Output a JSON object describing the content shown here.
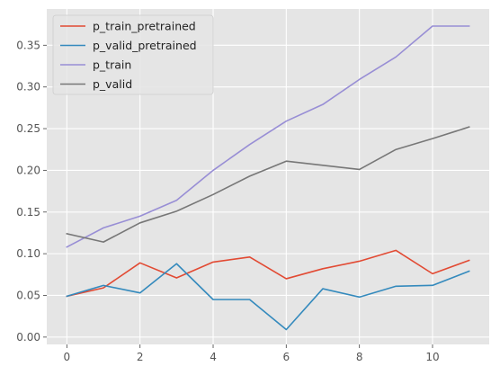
{
  "chart_data": {
    "type": "line",
    "title": "",
    "xlabel": "",
    "ylabel": "",
    "x": [
      0,
      1,
      2,
      3,
      4,
      5,
      6,
      7,
      8,
      9,
      10,
      11
    ],
    "xlim": [
      -0.55,
      11.55
    ],
    "ylim": [
      -0.0088,
      0.3935
    ],
    "xticks": [
      0,
      2,
      4,
      6,
      8,
      10
    ],
    "xtick_labels": [
      "0",
      "2",
      "4",
      "6",
      "8",
      "10"
    ],
    "yticks": [
      0.0,
      0.05,
      0.1,
      0.15,
      0.2,
      0.25,
      0.3,
      0.35
    ],
    "ytick_labels": [
      "0.00",
      "0.05",
      "0.10",
      "0.15",
      "0.20",
      "0.25",
      "0.30",
      "0.35"
    ],
    "grid": true,
    "legend_position": "upper-left",
    "series": [
      {
        "name": "p_train_pretrained",
        "color": "#E24A33",
        "values": [
          0.049,
          0.059,
          0.089,
          0.071,
          0.09,
          0.096,
          0.07,
          0.082,
          0.091,
          0.104,
          0.076,
          0.092
        ]
      },
      {
        "name": "p_valid_pretrained",
        "color": "#348ABD",
        "values": [
          0.049,
          0.062,
          0.053,
          0.088,
          0.045,
          0.045,
          0.009,
          0.058,
          0.048,
          0.061,
          0.062,
          0.079
        ]
      },
      {
        "name": "p_train",
        "color": "#988ED5",
        "values": [
          0.108,
          0.131,
          0.145,
          0.164,
          0.2,
          0.231,
          0.259,
          0.279,
          0.309,
          0.336,
          0.373,
          0.373
        ]
      },
      {
        "name": "p_valid",
        "color": "#777777",
        "values": [
          0.124,
          0.114,
          0.137,
          0.151,
          0.171,
          0.193,
          0.211,
          0.206,
          0.201,
          0.225,
          0.238,
          0.252
        ]
      }
    ]
  }
}
